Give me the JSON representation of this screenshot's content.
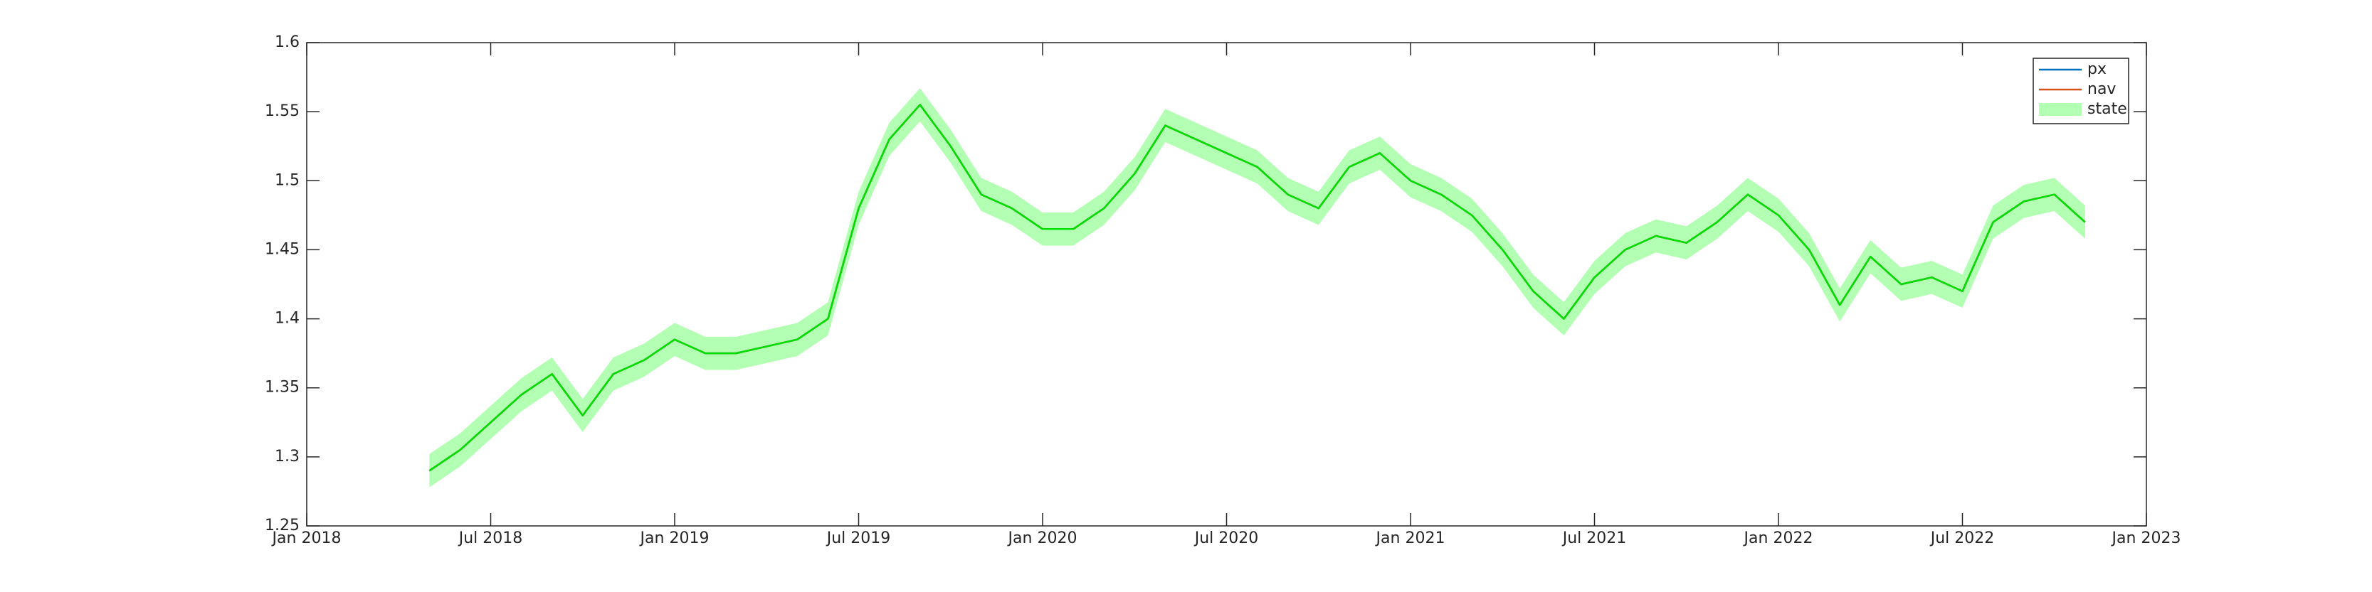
{
  "chart_data": {
    "type": "line",
    "x": [
      "2018-05",
      "2018-06",
      "2018-07",
      "2018-08",
      "2018-09",
      "2018-10",
      "2018-11",
      "2018-12",
      "2019-01",
      "2019-02",
      "2019-03",
      "2019-04",
      "2019-05",
      "2019-06",
      "2019-07",
      "2019-08",
      "2019-09",
      "2019-10",
      "2019-11",
      "2019-12",
      "2020-01",
      "2020-02",
      "2020-03",
      "2020-04",
      "2020-05",
      "2020-06",
      "2020-07",
      "2020-08",
      "2020-09",
      "2020-10",
      "2020-11",
      "2020-12",
      "2021-01",
      "2021-02",
      "2021-03",
      "2021-04",
      "2021-05",
      "2021-06",
      "2021-07",
      "2021-08",
      "2021-09",
      "2021-10",
      "2021-11",
      "2021-12",
      "2022-01",
      "2022-02",
      "2022-03",
      "2022-04",
      "2022-05",
      "2022-06",
      "2022-07",
      "2022-08",
      "2022-09",
      "2022-10",
      "2022-11"
    ],
    "series": [
      {
        "name": "px",
        "color": "#0072bd",
        "values": [
          1.29,
          1.305,
          1.325,
          1.345,
          1.36,
          1.33,
          1.36,
          1.37,
          1.385,
          1.375,
          1.375,
          1.38,
          1.385,
          1.4,
          1.48,
          1.53,
          1.555,
          1.525,
          1.49,
          1.48,
          1.465,
          1.465,
          1.48,
          1.505,
          1.54,
          1.53,
          1.52,
          1.51,
          1.49,
          1.48,
          1.51,
          1.52,
          1.5,
          1.49,
          1.475,
          1.45,
          1.42,
          1.4,
          1.43,
          1.45,
          1.46,
          1.455,
          1.47,
          1.49,
          1.475,
          1.45,
          1.41,
          1.445,
          1.425,
          1.43,
          1.42,
          1.47,
          1.485,
          1.49,
          1.47
        ]
      },
      {
        "name": "nav",
        "color": "#d95319",
        "values": [
          1.29,
          1.305,
          1.325,
          1.345,
          1.36,
          1.33,
          1.36,
          1.37,
          1.385,
          1.375,
          1.375,
          1.38,
          1.385,
          1.4,
          1.48,
          1.53,
          1.555,
          1.525,
          1.49,
          1.48,
          1.465,
          1.465,
          1.48,
          1.505,
          1.54,
          1.53,
          1.52,
          1.51,
          1.49,
          1.48,
          1.51,
          1.52,
          1.5,
          1.49,
          1.475,
          1.45,
          1.42,
          1.4,
          1.43,
          1.45,
          1.46,
          1.455,
          1.47,
          1.49,
          1.475,
          1.45,
          1.41,
          1.445,
          1.425,
          1.43,
          1.42,
          1.47,
          1.485,
          1.49,
          1.47
        ]
      },
      {
        "name": "state",
        "color": "#00e000",
        "fill": "#b3ffb3",
        "values": [
          1.29,
          1.305,
          1.325,
          1.345,
          1.36,
          1.33,
          1.36,
          1.37,
          1.385,
          1.375,
          1.375,
          1.38,
          1.385,
          1.4,
          1.48,
          1.53,
          1.555,
          1.525,
          1.49,
          1.48,
          1.465,
          1.465,
          1.48,
          1.505,
          1.54,
          1.53,
          1.52,
          1.51,
          1.49,
          1.48,
          1.51,
          1.52,
          1.5,
          1.49,
          1.475,
          1.45,
          1.42,
          1.4,
          1.43,
          1.45,
          1.46,
          1.455,
          1.47,
          1.49,
          1.475,
          1.45,
          1.41,
          1.445,
          1.425,
          1.43,
          1.42,
          1.47,
          1.485,
          1.49,
          1.47
        ],
        "lower": [
          1.278,
          1.293,
          1.313,
          1.333,
          1.348,
          1.318,
          1.348,
          1.358,
          1.373,
          1.363,
          1.363,
          1.368,
          1.373,
          1.388,
          1.468,
          1.518,
          1.543,
          1.513,
          1.478,
          1.468,
          1.453,
          1.453,
          1.468,
          1.493,
          1.528,
          1.518,
          1.508,
          1.498,
          1.478,
          1.468,
          1.498,
          1.508,
          1.488,
          1.478,
          1.463,
          1.438,
          1.408,
          1.388,
          1.418,
          1.438,
          1.448,
          1.443,
          1.458,
          1.478,
          1.463,
          1.438,
          1.398,
          1.433,
          1.413,
          1.418,
          1.408,
          1.458,
          1.473,
          1.478,
          1.458
        ],
        "upper": [
          1.302,
          1.317,
          1.337,
          1.357,
          1.372,
          1.342,
          1.372,
          1.382,
          1.397,
          1.387,
          1.387,
          1.392,
          1.397,
          1.412,
          1.492,
          1.542,
          1.567,
          1.537,
          1.502,
          1.492,
          1.477,
          1.477,
          1.492,
          1.517,
          1.552,
          1.542,
          1.532,
          1.522,
          1.502,
          1.492,
          1.522,
          1.532,
          1.512,
          1.502,
          1.487,
          1.462,
          1.432,
          1.412,
          1.442,
          1.462,
          1.472,
          1.467,
          1.482,
          1.502,
          1.487,
          1.462,
          1.422,
          1.457,
          1.437,
          1.442,
          1.432,
          1.482,
          1.497,
          1.502,
          1.482
        ]
      }
    ],
    "xlim": [
      "2018-01",
      "2023-01"
    ],
    "xticks": [
      {
        "value": "2018-01",
        "label": "Jan 2018"
      },
      {
        "value": "2018-07",
        "label": "Jul 2018"
      },
      {
        "value": "2019-01",
        "label": "Jan 2019"
      },
      {
        "value": "2019-07",
        "label": "Jul 2019"
      },
      {
        "value": "2020-01",
        "label": "Jan 2020"
      },
      {
        "value": "2020-07",
        "label": "Jul 2020"
      },
      {
        "value": "2021-01",
        "label": "Jan 2021"
      },
      {
        "value": "2021-07",
        "label": "Jul 2021"
      },
      {
        "value": "2022-01",
        "label": "Jan 2022"
      },
      {
        "value": "2022-07",
        "label": "Jul 2022"
      },
      {
        "value": "2023-01",
        "label": "Jan 2023"
      }
    ],
    "ylim": [
      1.25,
      1.6
    ],
    "yticks": [
      1.25,
      1.3,
      1.35,
      1.4,
      1.45,
      1.5,
      1.55,
      1.6
    ],
    "grid": false,
    "legend": "top-right"
  }
}
